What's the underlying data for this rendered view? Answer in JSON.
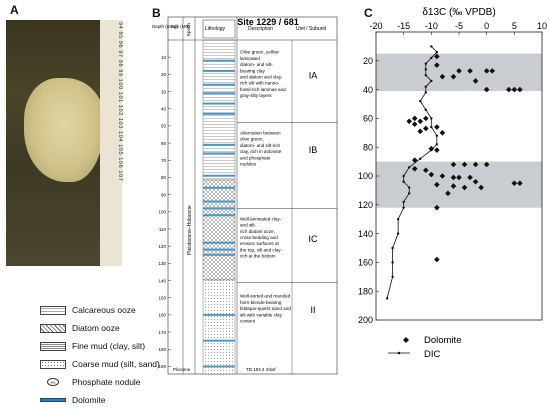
{
  "panels": {
    "a": "A",
    "b": "B",
    "c": "C"
  },
  "ruler_labels": "94 95 96 97 98 99 100 101 102 103 104 105 106 107",
  "column": {
    "site": "Site 1229 / 681",
    "headers": {
      "depth": "Depth (mbsf)",
      "age": "Age (Ma)",
      "epoch": "Epoch",
      "lithology": "Lithology",
      "description": "Description",
      "unit": "Unit / Subunit"
    },
    "epoch_label": "Pleistocene–Holocene",
    "epoch_bottom": "Pliocene",
    "td": "TD 194.4 mbsf",
    "depth_ticks": [
      10,
      20,
      30,
      40,
      50,
      60,
      70,
      80,
      90,
      100,
      110,
      120,
      130,
      140,
      150,
      160,
      170,
      180,
      190
    ],
    "units": [
      {
        "name": "IA",
        "lines": [
          "Olive green, yellow",
          "laminated",
          "diatom- and silt-",
          "bearing clay",
          "and diatom and clay-",
          "rich silt with nanno-",
          "fossil-rich laminae and",
          "gray silty layers"
        ]
      },
      {
        "name": "IB",
        "lines": [
          "Alternation between",
          "olive green,",
          "diatom- and silt-rich",
          "clay, rich in dolomite",
          "and phosphate",
          "nodules"
        ]
      },
      {
        "name": "IC",
        "lines": [
          "Well-laminated clay-",
          "and silt-",
          "rich diatom ooze,",
          "cross-bedding and",
          "erosion surfaces at",
          "the top, silt and clay-",
          "rich at the bottom"
        ]
      },
      {
        "name": "II",
        "lines": [
          "Well-sorted and rounded",
          "horn-blende-bearing",
          "feldspar-quartz sand and",
          "silt with variable clay",
          "content"
        ]
      }
    ]
  },
  "legend": [
    {
      "label": "Calcareous ooze"
    },
    {
      "label": "Diatom ooze"
    },
    {
      "label": "Fine mud (clay, silt)"
    },
    {
      "label": "Coarse mud (silt, sand)"
    },
    {
      "label": "Phosphate nodule",
      "symbol": "Ph"
    },
    {
      "label": "Dolomite"
    }
  ],
  "chart_data": {
    "type": "scatter",
    "title": "δ13C (‰ VPDB)",
    "x_axis_position": "top",
    "xlim": [
      -20,
      10
    ],
    "ylim": [
      200,
      0
    ],
    "x_ticks": [
      -20,
      -15,
      -10,
      -5,
      0,
      5,
      10
    ],
    "y_ticks": [
      20,
      40,
      60,
      80,
      100,
      120,
      140,
      160,
      180,
      200
    ],
    "shaded_intervals": [
      [
        15,
        41
      ],
      [
        90,
        122
      ]
    ],
    "legend_position": "bottom-right",
    "series": [
      {
        "name": "Dolomite",
        "marker": "diamond",
        "points": [
          [
            -9,
            17
          ],
          [
            -9,
            23
          ],
          [
            -5,
            27
          ],
          [
            -3,
            27
          ],
          [
            0,
            27
          ],
          [
            1,
            27
          ],
          [
            -8,
            31
          ],
          [
            -6,
            31
          ],
          [
            -2,
            34
          ],
          [
            0,
            40
          ],
          [
            4,
            40
          ],
          [
            5,
            40
          ],
          [
            6,
            40
          ],
          [
            -13,
            60
          ],
          [
            -12,
            62
          ],
          [
            -14,
            62
          ],
          [
            -13,
            64
          ],
          [
            -11,
            60
          ],
          [
            -11,
            67
          ],
          [
            -9,
            66
          ],
          [
            -12,
            69
          ],
          [
            -8,
            70
          ],
          [
            -10,
            81
          ],
          [
            -9,
            82
          ],
          [
            -13,
            89
          ],
          [
            -6,
            92
          ],
          [
            -4,
            92
          ],
          [
            -2,
            92
          ],
          [
            0,
            92
          ],
          [
            -13,
            95
          ],
          [
            -11,
            96
          ],
          [
            -10,
            99
          ],
          [
            -8,
            100
          ],
          [
            -6,
            101
          ],
          [
            -5,
            101
          ],
          [
            -3,
            101
          ],
          [
            -2,
            104
          ],
          [
            -9,
            106
          ],
          [
            -6,
            107
          ],
          [
            -4,
            108
          ],
          [
            -1,
            108
          ],
          [
            -7,
            112
          ],
          [
            5,
            105
          ],
          [
            6,
            105
          ],
          [
            -9,
            122
          ],
          [
            -9,
            158
          ]
        ]
      },
      {
        "name": "DIC",
        "marker": "dot",
        "line": true,
        "points": [
          [
            -10,
            10
          ],
          [
            -9,
            14
          ],
          [
            -10,
            18
          ],
          [
            -11,
            22
          ],
          [
            -11,
            26
          ],
          [
            -11,
            30
          ],
          [
            -10,
            34
          ],
          [
            -11,
            38
          ],
          [
            -11,
            42
          ],
          [
            -12,
            48
          ],
          [
            -11,
            54
          ],
          [
            -10,
            60
          ],
          [
            -10,
            66
          ],
          [
            -9,
            72
          ],
          [
            -9,
            78
          ],
          [
            -10,
            82
          ],
          [
            -12,
            88
          ],
          [
            -14,
            94
          ],
          [
            -15,
            100
          ],
          [
            -15,
            104
          ],
          [
            -14,
            108
          ],
          [
            -14,
            112
          ],
          [
            -15,
            118
          ],
          [
            -15,
            122
          ],
          [
            -16,
            130
          ],
          [
            -16,
            140
          ],
          [
            -17,
            150
          ],
          [
            -17,
            160
          ],
          [
            -17,
            170
          ],
          [
            -18,
            185
          ]
        ]
      }
    ]
  }
}
